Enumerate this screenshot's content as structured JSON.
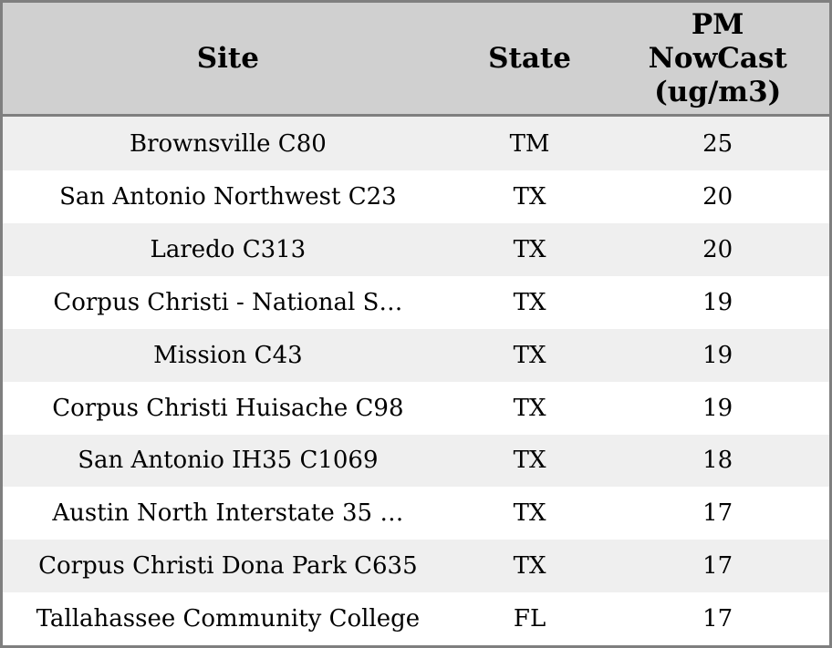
{
  "colors": {
    "outer_border": "#7f7f7f",
    "header_bg": "#d0d0d0",
    "header_separator": "#7f7f7f",
    "row_alt_bg": "#efefef",
    "row_bg": "#ffffff",
    "text": "#000000"
  },
  "chart_data": {
    "type": "table",
    "title": "",
    "columns": [
      {
        "id": "site",
        "label": "Site"
      },
      {
        "id": "state",
        "label": "State"
      },
      {
        "id": "pm_nowcast",
        "label": "PM\nNowCast\n(ug/m3)"
      }
    ],
    "rows": [
      {
        "site": "Brownsville C80",
        "state": "TM",
        "pm_nowcast": 25
      },
      {
        "site": "San Antonio Northwest C23",
        "state": "TX",
        "pm_nowcast": 20
      },
      {
        "site": "Laredo C313",
        "state": "TX",
        "pm_nowcast": 20
      },
      {
        "site": "Corpus Christi - National S…",
        "state": "TX",
        "pm_nowcast": 19
      },
      {
        "site": "Mission C43",
        "state": "TX",
        "pm_nowcast": 19
      },
      {
        "site": "Corpus Christi Huisache C98",
        "state": "TX",
        "pm_nowcast": 19
      },
      {
        "site": "San Antonio IH35 C1069",
        "state": "TX",
        "pm_nowcast": 18
      },
      {
        "site": "Austin North Interstate 35 …",
        "state": "TX",
        "pm_nowcast": 17
      },
      {
        "site": "Corpus Christi Dona Park C635",
        "state": "TX",
        "pm_nowcast": 17
      },
      {
        "site": "Tallahassee Community College",
        "state": "FL",
        "pm_nowcast": 17
      }
    ]
  }
}
